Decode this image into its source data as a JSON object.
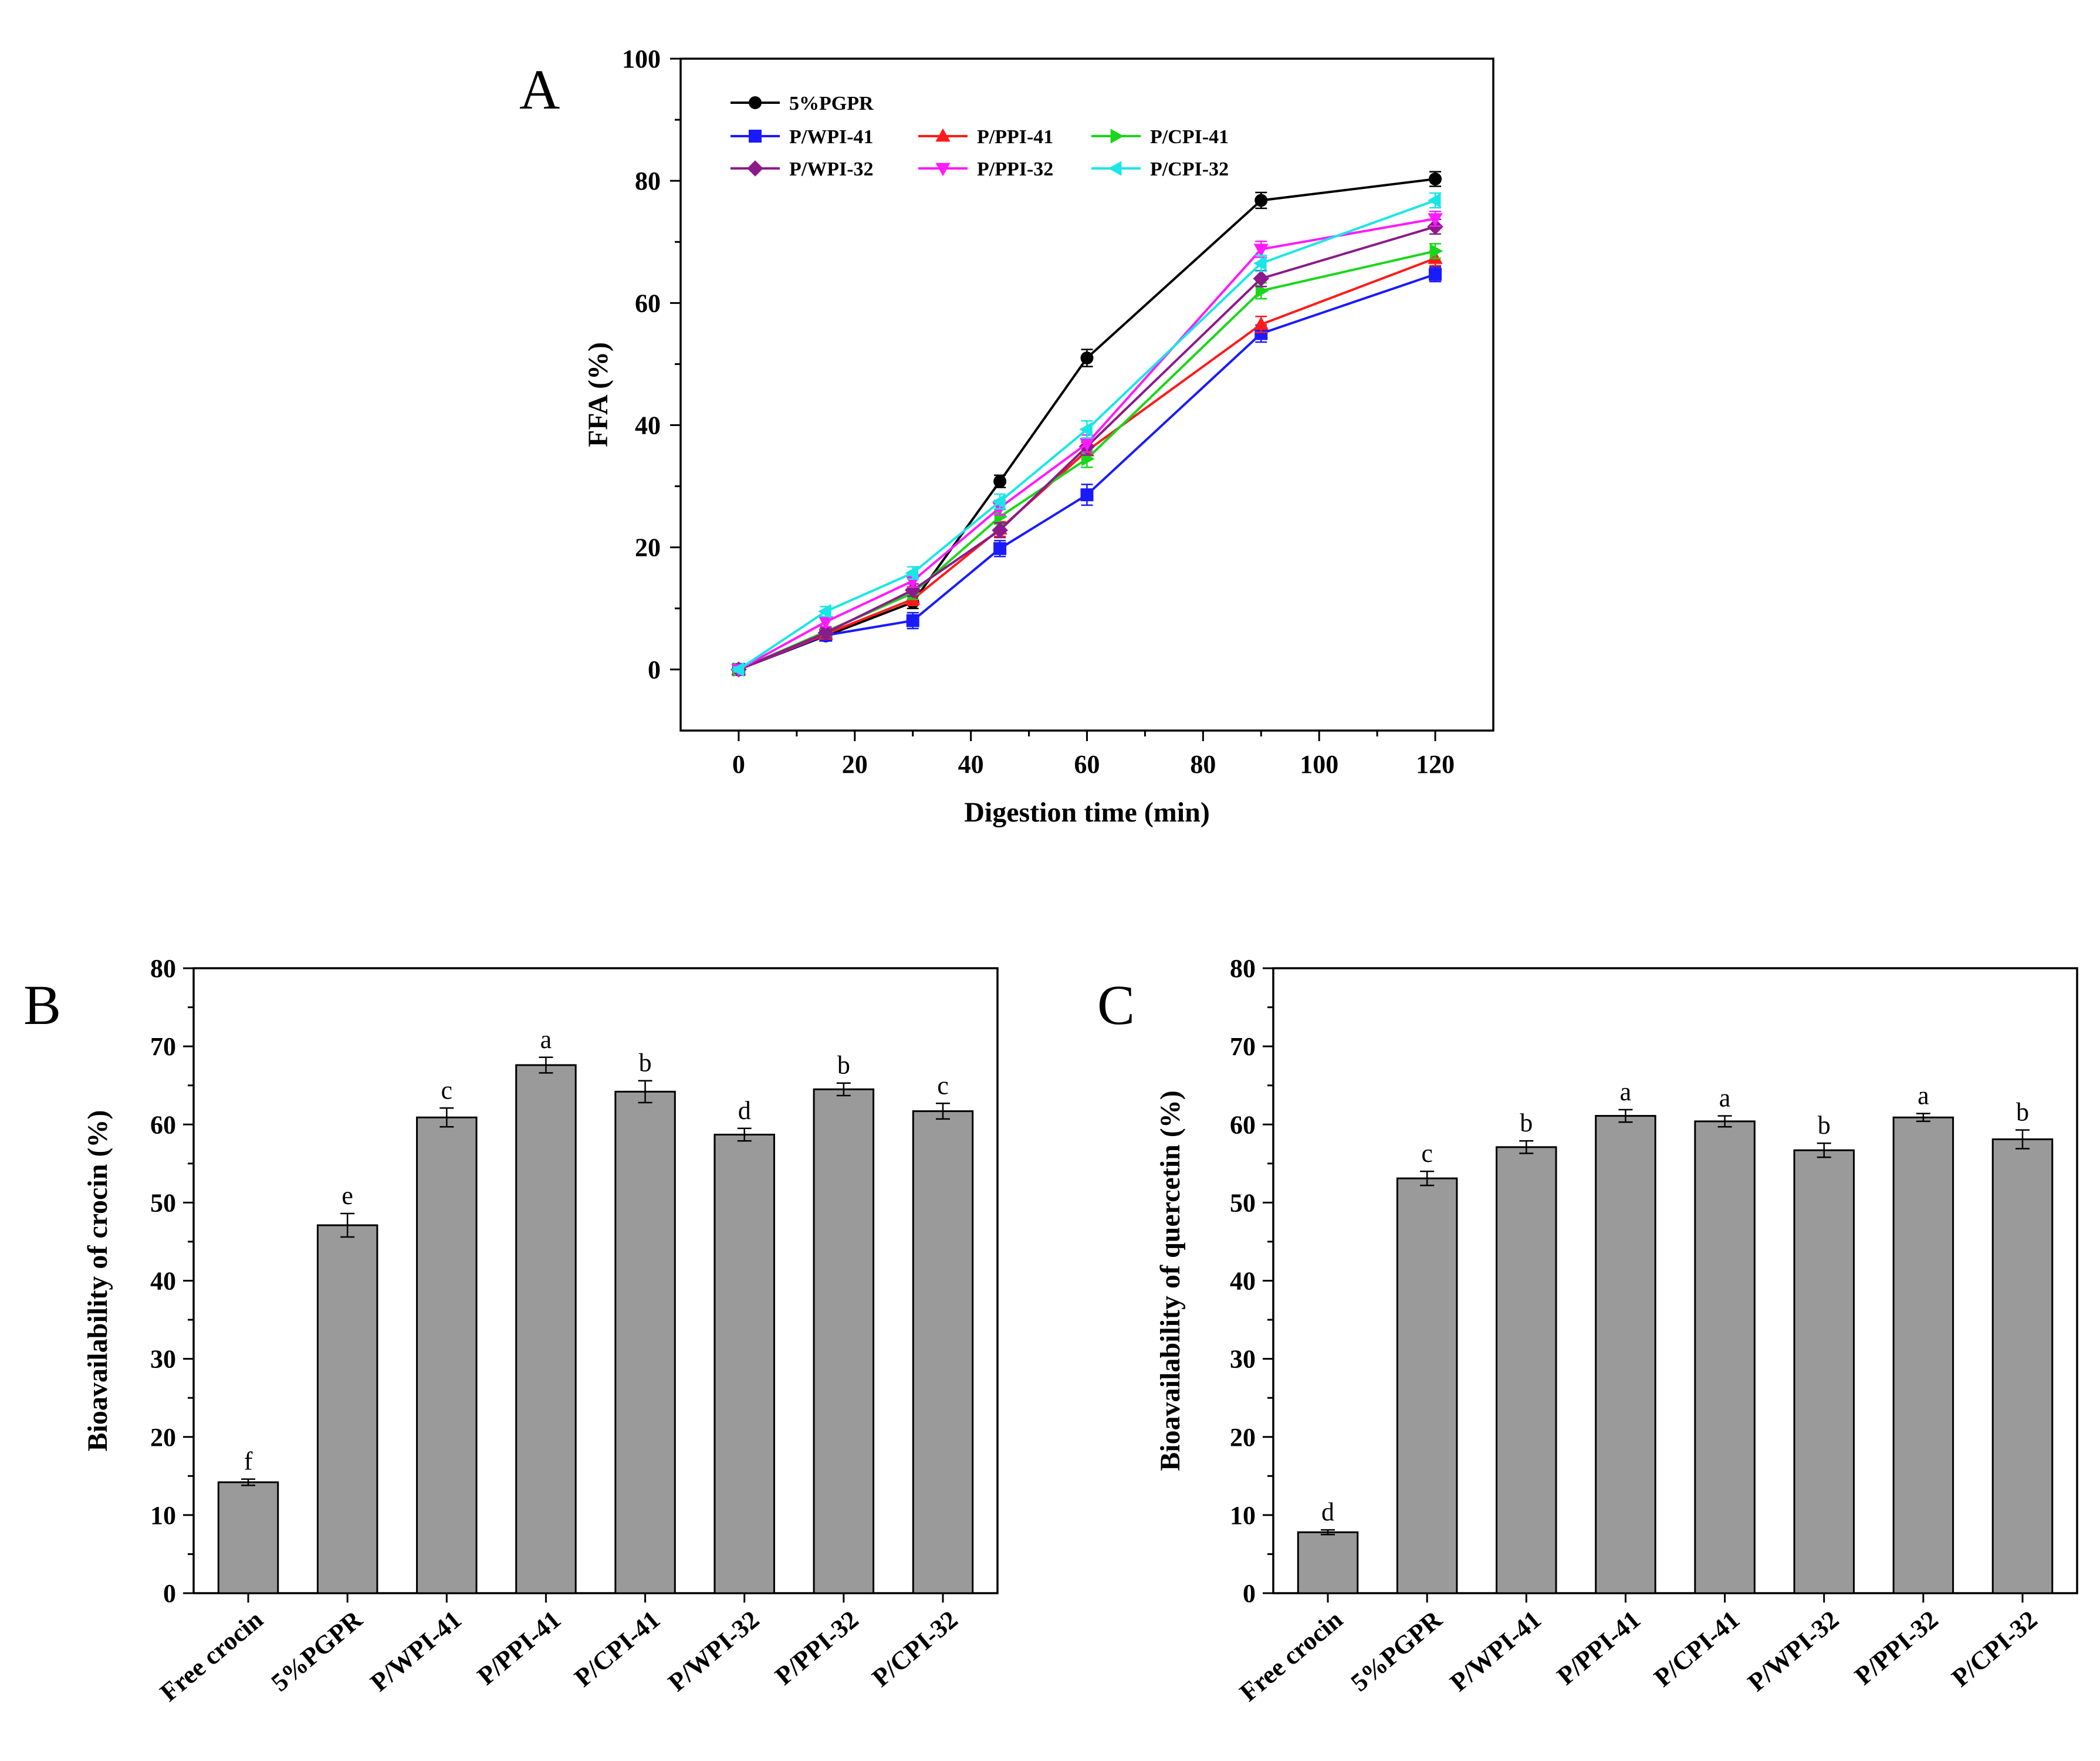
{
  "chart_data": [
    {
      "panel": "A",
      "type": "line",
      "xlabel": "Digestion time (min)",
      "ylabel": "FFA (%)",
      "xlim": [
        -10,
        130
      ],
      "ylim": [
        -10,
        100
      ],
      "xticks": [
        0,
        20,
        40,
        60,
        80,
        100,
        120
      ],
      "yticks": [
        0,
        20,
        40,
        60,
        80,
        100
      ],
      "x": [
        0,
        15,
        30,
        45,
        60,
        90,
        120
      ],
      "series": [
        {
          "name": "5%PGPR",
          "color": "#000000",
          "marker": "circle",
          "values": [
            0,
            5.5,
            11,
            30.8,
            51,
            76.8,
            80.3
          ],
          "err": [
            0.4,
            0.8,
            1.0,
            1.0,
            1.4,
            1.3,
            1.2
          ]
        },
        {
          "name": "P/WPI-41",
          "color": "#1a1aff",
          "marker": "square",
          "values": [
            0,
            5.6,
            8,
            19.8,
            28.6,
            55,
            64.7
          ],
          "err": [
            0.4,
            0.8,
            1.3,
            1.3,
            1.7,
            1.4,
            1.2
          ]
        },
        {
          "name": "P/PPI-41",
          "color": "#ff1a1a",
          "marker": "triangle-up",
          "values": [
            0,
            5.8,
            11.5,
            23,
            35.8,
            56.5,
            67.3
          ],
          "err": [
            0.4,
            0.8,
            1.0,
            1.2,
            1.4,
            1.3,
            1.2
          ]
        },
        {
          "name": "P/CPI-41",
          "color": "#1ad61a",
          "marker": "triangle-right",
          "values": [
            0,
            6.2,
            12.5,
            25,
            34.5,
            62,
            68.5
          ],
          "err": [
            0.4,
            0.8,
            1.0,
            1.2,
            1.4,
            1.3,
            1.2
          ]
        },
        {
          "name": "P/WPI-32",
          "color": "#8b1a8b",
          "marker": "diamond",
          "values": [
            0,
            6,
            13,
            22.8,
            36.5,
            64,
            72.5
          ],
          "err": [
            0.4,
            0.8,
            1.0,
            1.2,
            1.4,
            1.3,
            1.2
          ]
        },
        {
          "name": "P/PPI-32",
          "color": "#ff1aff",
          "marker": "triangle-down",
          "values": [
            0,
            7.8,
            14.5,
            26.5,
            37,
            68.8,
            73.8
          ],
          "err": [
            0.4,
            0.8,
            1.0,
            1.2,
            1.4,
            1.3,
            1.2
          ]
        },
        {
          "name": "P/CPI-32",
          "color": "#1ae6e6",
          "marker": "triangle-left",
          "values": [
            0,
            9.5,
            15.8,
            27.5,
            39.3,
            66.5,
            76.8
          ],
          "err": [
            0.4,
            0.8,
            1.0,
            1.2,
            1.4,
            1.3,
            1.2
          ]
        }
      ]
    },
    {
      "panel": "B",
      "type": "bar",
      "xlabel": "",
      "ylabel": "Bioavailability of crocin (%)",
      "ylim": [
        0,
        80
      ],
      "yticks": [
        0,
        10,
        20,
        30,
        40,
        50,
        60,
        70,
        80
      ],
      "categories": [
        "Free crocin",
        "5%PGPR",
        "P/WPI-41",
        "P/PPI-41",
        "P/CPI-41",
        "P/WPI-32",
        "P/PPI-32",
        "P/CPI-32"
      ],
      "values": [
        14.2,
        47.1,
        60.9,
        67.6,
        64.2,
        58.7,
        64.5,
        61.7
      ],
      "err": [
        0.4,
        1.5,
        1.2,
        1.0,
        1.4,
        0.8,
        0.8,
        1.0
      ],
      "letters": [
        "f",
        "e",
        "c",
        "a",
        "b",
        "d",
        "b",
        "c"
      ]
    },
    {
      "panel": "C",
      "type": "bar",
      "xlabel": "",
      "ylabel": "Bioavailability of quercetin (%)",
      "ylim": [
        0,
        80
      ],
      "yticks": [
        0,
        10,
        20,
        30,
        40,
        50,
        60,
        70,
        80
      ],
      "categories": [
        "Free crocin",
        "5%PGPR",
        "P/WPI-41",
        "P/PPI-41",
        "P/CPI-41",
        "P/WPI-32",
        "P/PPI-32",
        "P/CPI-32"
      ],
      "values": [
        7.8,
        53.1,
        57.1,
        61.1,
        60.4,
        56.7,
        60.9,
        58.1
      ],
      "err": [
        0.3,
        0.9,
        0.8,
        0.8,
        0.7,
        0.9,
        0.5,
        1.2
      ],
      "letters": [
        "d",
        "c",
        "b",
        "a",
        "a",
        "b",
        "a",
        "b"
      ]
    }
  ]
}
